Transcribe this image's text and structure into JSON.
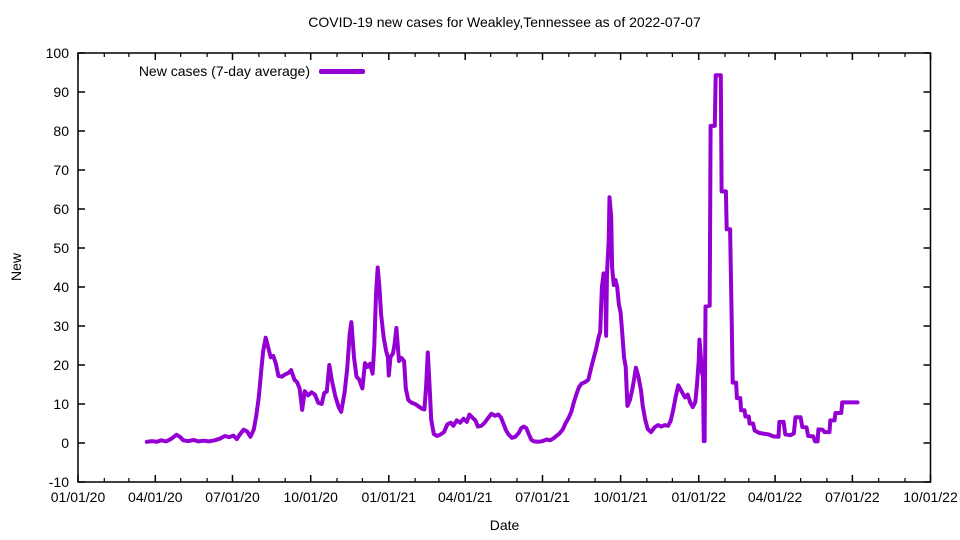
{
  "title": "COVID-19 new cases for Weakley,Tennessee as of 2022-07-07",
  "chart_data": {
    "type": "line",
    "title": "COVID-19 new cases for Weakley,Tennessee as of 2022-07-07",
    "xlabel": "Date",
    "ylabel": "New",
    "grid": false,
    "legend_position": "top-left-inside",
    "legend_label": "New cases (7-day average)",
    "line_color": "#9400d3",
    "ylim": [
      -10,
      100
    ],
    "x_range": [
      "2020-01-01",
      "2022-10-01"
    ],
    "y_ticks": [
      -10,
      0,
      10,
      20,
      30,
      40,
      50,
      60,
      70,
      80,
      90,
      100
    ],
    "x_ticks": [
      {
        "label": "01/01/20",
        "date": "2020-01-01"
      },
      {
        "label": "04/01/20",
        "date": "2020-04-01"
      },
      {
        "label": "07/01/20",
        "date": "2020-07-01"
      },
      {
        "label": "10/01/20",
        "date": "2020-10-01"
      },
      {
        "label": "01/01/21",
        "date": "2021-01-01"
      },
      {
        "label": "04/01/21",
        "date": "2021-04-01"
      },
      {
        "label": "07/01/21",
        "date": "2021-07-01"
      },
      {
        "label": "10/01/21",
        "date": "2021-10-01"
      },
      {
        "label": "01/01/22",
        "date": "2022-01-01"
      },
      {
        "label": "04/01/22",
        "date": "2022-04-01"
      },
      {
        "label": "07/01/22",
        "date": "2022-07-01"
      },
      {
        "label": "10/01/22",
        "date": "2022-10-01"
      }
    ],
    "series": [
      {
        "name": "New cases (7-day average)",
        "color": "#9400d3",
        "points": [
          [
            "2020-03-22",
            0.3
          ],
          [
            "2020-03-28",
            0.5
          ],
          [
            "2020-04-03",
            0.3
          ],
          [
            "2020-04-08",
            0.7
          ],
          [
            "2020-04-14",
            0.4
          ],
          [
            "2020-04-20",
            1.1
          ],
          [
            "2020-04-26",
            2.1
          ],
          [
            "2020-04-30",
            1.6
          ],
          [
            "2020-05-04",
            0.7
          ],
          [
            "2020-05-10",
            0.5
          ],
          [
            "2020-05-16",
            0.8
          ],
          [
            "2020-05-22",
            0.4
          ],
          [
            "2020-05-28",
            0.6
          ],
          [
            "2020-06-03",
            0.4
          ],
          [
            "2020-06-10",
            0.7
          ],
          [
            "2020-06-16",
            1.1
          ],
          [
            "2020-06-22",
            1.8
          ],
          [
            "2020-06-27",
            1.5
          ],
          [
            "2020-07-02",
            1.9
          ],
          [
            "2020-07-06",
            1.0
          ],
          [
            "2020-07-10",
            2.3
          ],
          [
            "2020-07-14",
            3.4
          ],
          [
            "2020-07-18",
            3.0
          ],
          [
            "2020-07-22",
            1.6
          ],
          [
            "2020-07-26",
            3.5
          ],
          [
            "2020-07-29",
            7.0
          ],
          [
            "2020-08-01",
            12.0
          ],
          [
            "2020-08-04",
            19.0
          ],
          [
            "2020-08-06",
            23.5
          ],
          [
            "2020-08-09",
            27.0
          ],
          [
            "2020-08-12",
            24.5
          ],
          [
            "2020-08-15",
            22.0
          ],
          [
            "2020-08-18",
            22.3
          ],
          [
            "2020-08-21",
            20.4
          ],
          [
            "2020-08-24",
            17.2
          ],
          [
            "2020-08-28",
            17.0
          ],
          [
            "2020-09-01",
            17.6
          ],
          [
            "2020-09-05",
            18.0
          ],
          [
            "2020-09-08",
            18.7
          ],
          [
            "2020-09-12",
            16.2
          ],
          [
            "2020-09-15",
            15.6
          ],
          [
            "2020-09-18",
            14.0
          ],
          [
            "2020-09-21",
            8.5
          ],
          [
            "2020-09-24",
            13.3
          ],
          [
            "2020-09-28",
            12.2
          ],
          [
            "2020-10-02",
            13.0
          ],
          [
            "2020-10-06",
            12.4
          ],
          [
            "2020-10-10",
            10.3
          ],
          [
            "2020-10-14",
            10.0
          ],
          [
            "2020-10-17",
            12.8
          ],
          [
            "2020-10-20",
            13.2
          ],
          [
            "2020-10-23",
            20.0
          ],
          [
            "2020-10-26",
            16.0
          ],
          [
            "2020-10-30",
            12.0
          ],
          [
            "2020-11-03",
            9.2
          ],
          [
            "2020-11-06",
            8.0
          ],
          [
            "2020-11-10",
            13.0
          ],
          [
            "2020-11-13",
            19.0
          ],
          [
            "2020-11-16",
            28.0
          ],
          [
            "2020-11-18",
            31.0
          ],
          [
            "2020-11-21",
            22.0
          ],
          [
            "2020-11-24",
            17.0
          ],
          [
            "2020-11-27",
            16.3
          ],
          [
            "2020-12-01",
            14.0
          ],
          [
            "2020-12-04",
            20.5
          ],
          [
            "2020-12-07",
            19.5
          ],
          [
            "2020-12-10",
            20.3
          ],
          [
            "2020-12-13",
            17.8
          ],
          [
            "2020-12-15",
            25.0
          ],
          [
            "2020-12-17",
            38.0
          ],
          [
            "2020-12-19",
            45.0
          ],
          [
            "2020-12-21",
            40.0
          ],
          [
            "2020-12-23",
            33.0
          ],
          [
            "2020-12-26",
            27.0
          ],
          [
            "2020-12-29",
            23.5
          ],
          [
            "2020-12-31",
            22.0
          ],
          [
            "2021-01-01",
            17.3
          ],
          [
            "2021-01-03",
            22.0
          ],
          [
            "2021-01-06",
            23.0
          ],
          [
            "2021-01-08",
            25.5
          ],
          [
            "2021-01-10",
            29.5
          ],
          [
            "2021-01-13",
            21.0
          ],
          [
            "2021-01-16",
            21.8
          ],
          [
            "2021-01-19",
            21.0
          ],
          [
            "2021-01-21",
            14.0
          ],
          [
            "2021-01-24",
            11.0
          ],
          [
            "2021-01-28",
            10.3
          ],
          [
            "2021-02-01",
            10.0
          ],
          [
            "2021-02-05",
            9.4
          ],
          [
            "2021-02-09",
            8.8
          ],
          [
            "2021-02-12",
            8.6
          ],
          [
            "2021-02-14",
            14.4
          ],
          [
            "2021-02-16",
            23.2
          ],
          [
            "2021-02-18",
            15.0
          ],
          [
            "2021-02-20",
            6.0
          ],
          [
            "2021-02-23",
            2.3
          ],
          [
            "2021-02-27",
            1.8
          ],
          [
            "2021-03-03",
            2.2
          ],
          [
            "2021-03-07",
            2.8
          ],
          [
            "2021-03-11",
            4.8
          ],
          [
            "2021-03-15",
            5.2
          ],
          [
            "2021-03-18",
            4.4
          ],
          [
            "2021-03-22",
            5.8
          ],
          [
            "2021-03-26",
            5.2
          ],
          [
            "2021-03-30",
            6.2
          ],
          [
            "2021-04-03",
            5.4
          ],
          [
            "2021-04-06",
            7.3
          ],
          [
            "2021-04-10",
            6.4
          ],
          [
            "2021-04-13",
            5.8
          ],
          [
            "2021-04-16",
            4.2
          ],
          [
            "2021-04-20",
            4.4
          ],
          [
            "2021-04-24",
            5.2
          ],
          [
            "2021-04-28",
            6.4
          ],
          [
            "2021-05-02",
            7.5
          ],
          [
            "2021-05-06",
            7.0
          ],
          [
            "2021-05-10",
            7.3
          ],
          [
            "2021-05-13",
            6.6
          ],
          [
            "2021-05-16",
            5.0
          ],
          [
            "2021-05-19",
            3.3
          ],
          [
            "2021-05-22",
            2.2
          ],
          [
            "2021-05-26",
            1.3
          ],
          [
            "2021-05-30",
            1.6
          ],
          [
            "2021-06-03",
            2.6
          ],
          [
            "2021-06-06",
            3.8
          ],
          [
            "2021-06-09",
            4.2
          ],
          [
            "2021-06-12",
            3.8
          ],
          [
            "2021-06-15",
            2.2
          ],
          [
            "2021-06-18",
            0.8
          ],
          [
            "2021-06-21",
            0.4
          ],
          [
            "2021-06-26",
            0.3
          ],
          [
            "2021-07-01",
            0.5
          ],
          [
            "2021-07-06",
            0.9
          ],
          [
            "2021-07-10",
            0.7
          ],
          [
            "2021-07-14",
            1.2
          ],
          [
            "2021-07-18",
            1.9
          ],
          [
            "2021-07-21",
            2.4
          ],
          [
            "2021-07-25",
            3.5
          ],
          [
            "2021-07-28",
            5.0
          ],
          [
            "2021-08-01",
            6.5
          ],
          [
            "2021-08-04",
            8.0
          ],
          [
            "2021-08-07",
            10.5
          ],
          [
            "2021-08-10",
            12.5
          ],
          [
            "2021-08-13",
            14.3
          ],
          [
            "2021-08-16",
            15.2
          ],
          [
            "2021-08-20",
            15.6
          ],
          [
            "2021-08-24",
            16.2
          ],
          [
            "2021-08-27",
            19.0
          ],
          [
            "2021-08-30",
            21.5
          ],
          [
            "2021-09-02",
            24.0
          ],
          [
            "2021-09-05",
            27.0
          ],
          [
            "2021-09-07",
            28.5
          ],
          [
            "2021-09-09",
            40.0
          ],
          [
            "2021-09-11",
            43.5
          ],
          [
            "2021-09-13",
            41.0
          ],
          [
            "2021-09-14",
            27.5
          ],
          [
            "2021-09-15",
            43.5
          ],
          [
            "2021-09-17",
            52.0
          ],
          [
            "2021-09-18",
            63.0
          ],
          [
            "2021-09-20",
            58.0
          ],
          [
            "2021-09-21",
            45.0
          ],
          [
            "2021-09-23",
            40.5
          ],
          [
            "2021-09-25",
            41.8
          ],
          [
            "2021-09-27",
            40.0
          ],
          [
            "2021-09-29",
            35.5
          ],
          [
            "2021-10-01",
            33.5
          ],
          [
            "2021-10-03",
            28.0
          ],
          [
            "2021-10-05",
            22.0
          ],
          [
            "2021-10-07",
            19.5
          ],
          [
            "2021-10-09",
            9.5
          ],
          [
            "2021-10-12",
            11.0
          ],
          [
            "2021-10-15",
            14.0
          ],
          [
            "2021-10-17",
            16.5
          ],
          [
            "2021-10-19",
            19.3
          ],
          [
            "2021-10-22",
            17.0
          ],
          [
            "2021-10-25",
            13.5
          ],
          [
            "2021-10-27",
            9.5
          ],
          [
            "2021-10-30",
            6.0
          ],
          [
            "2021-11-02",
            3.6
          ],
          [
            "2021-11-06",
            2.8
          ],
          [
            "2021-11-10",
            4.0
          ],
          [
            "2021-11-14",
            4.6
          ],
          [
            "2021-11-18",
            4.2
          ],
          [
            "2021-11-22",
            4.6
          ],
          [
            "2021-11-26",
            4.4
          ],
          [
            "2021-11-29",
            5.7
          ],
          [
            "2021-12-02",
            8.5
          ],
          [
            "2021-12-05",
            12.0
          ],
          [
            "2021-12-08",
            14.8
          ],
          [
            "2021-12-10",
            14.0
          ],
          [
            "2021-12-13",
            12.8
          ],
          [
            "2021-12-16",
            11.7
          ],
          [
            "2021-12-19",
            12.4
          ],
          [
            "2021-12-22",
            10.4
          ],
          [
            "2021-12-25",
            9.2
          ],
          [
            "2021-12-28",
            10.5
          ],
          [
            "2021-12-30",
            15.0
          ],
          [
            "2022-01-01",
            21.0
          ],
          [
            "2022-01-02",
            26.5
          ],
          [
            "2022-01-04",
            21.0
          ],
          [
            "2022-01-05",
            18.0
          ],
          [
            "2022-01-06",
            17.0
          ],
          [
            "2022-01-07",
            0.5
          ],
          [
            "2022-01-08",
            0.5
          ],
          [
            "2022-01-09",
            35.0
          ],
          [
            "2022-01-14",
            35.2
          ],
          [
            "2022-01-15",
            81.3
          ],
          [
            "2022-01-20",
            81.3
          ],
          [
            "2022-01-21",
            94.3
          ],
          [
            "2022-01-27",
            94.3
          ],
          [
            "2022-01-28",
            64.5
          ],
          [
            "2022-02-02",
            64.5
          ],
          [
            "2022-02-03",
            54.8
          ],
          [
            "2022-02-07",
            54.8
          ],
          [
            "2022-02-09",
            30.0
          ],
          [
            "2022-02-10",
            15.5
          ],
          [
            "2022-02-14",
            15.5
          ],
          [
            "2022-02-15",
            11.5
          ],
          [
            "2022-02-19",
            11.5
          ],
          [
            "2022-02-20",
            8.4
          ],
          [
            "2022-02-24",
            8.4
          ],
          [
            "2022-02-25",
            6.8
          ],
          [
            "2022-03-01",
            6.8
          ],
          [
            "2022-03-02",
            5.0
          ],
          [
            "2022-03-06",
            5.0
          ],
          [
            "2022-03-08",
            3.2
          ],
          [
            "2022-03-13",
            2.6
          ],
          [
            "2022-03-18",
            2.4
          ],
          [
            "2022-03-24",
            2.2
          ],
          [
            "2022-03-30",
            1.7
          ],
          [
            "2022-04-05",
            1.6
          ],
          [
            "2022-04-06",
            5.4
          ],
          [
            "2022-04-11",
            5.4
          ],
          [
            "2022-04-13",
            2.2
          ],
          [
            "2022-04-19",
            2.0
          ],
          [
            "2022-04-23",
            2.4
          ],
          [
            "2022-04-25",
            6.6
          ],
          [
            "2022-05-01",
            6.6
          ],
          [
            "2022-05-03",
            4.1
          ],
          [
            "2022-05-08",
            4.0
          ],
          [
            "2022-05-10",
            1.8
          ],
          [
            "2022-05-16",
            1.7
          ],
          [
            "2022-05-18",
            0.4
          ],
          [
            "2022-05-21",
            0.4
          ],
          [
            "2022-05-22",
            3.5
          ],
          [
            "2022-05-27",
            3.4
          ],
          [
            "2022-05-29",
            2.8
          ],
          [
            "2022-06-04",
            2.8
          ],
          [
            "2022-06-05",
            5.8
          ],
          [
            "2022-06-10",
            5.8
          ],
          [
            "2022-06-11",
            7.7
          ],
          [
            "2022-06-18",
            7.7
          ],
          [
            "2022-06-19",
            10.4
          ],
          [
            "2022-06-30",
            10.4
          ],
          [
            "2022-07-07",
            10.4
          ]
        ]
      }
    ]
  }
}
